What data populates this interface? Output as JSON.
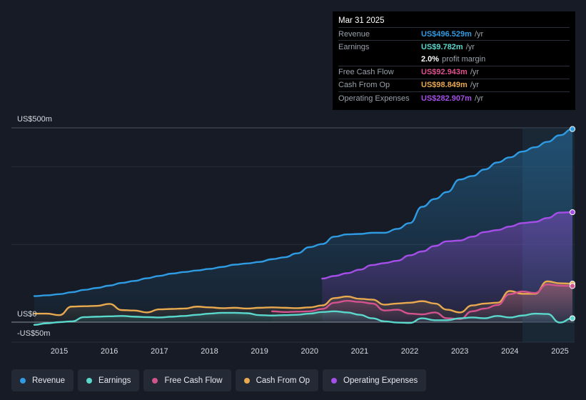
{
  "tooltip": {
    "date": "Mar 31 2025",
    "rows": [
      {
        "label": "Revenue",
        "value": "US$496.529m",
        "unit": "/yr",
        "color": "#2f9be3"
      },
      {
        "label": "Earnings",
        "value": "US$9.782m",
        "unit": "/yr",
        "color": "#5ad8cc"
      },
      {
        "label": "",
        "value": "2.0%",
        "unit": "profit margin",
        "color": "#ffffff"
      },
      {
        "label": "Free Cash Flow",
        "value": "US$92.943m",
        "unit": "/yr",
        "color": "#e0508f"
      },
      {
        "label": "Cash From Op",
        "value": "US$98.849m",
        "unit": "/yr",
        "color": "#e9a94f"
      },
      {
        "label": "Operating Expenses",
        "value": "US$282.907m",
        "unit": "/yr",
        "color": "#a54ee8"
      }
    ]
  },
  "legend": [
    {
      "label": "Revenue",
      "color": "#2f9be3"
    },
    {
      "label": "Earnings",
      "color": "#5ad8cc"
    },
    {
      "label": "Free Cash Flow",
      "color": "#d3538f"
    },
    {
      "label": "Cash From Op",
      "color": "#e9a94f"
    },
    {
      "label": "Operating Expenses",
      "color": "#a54ee8"
    }
  ],
  "chart_data": {
    "type": "area",
    "y_axis_labels": {
      "top": "US$500m",
      "zero": "US$0",
      "bottom": "-US$50m"
    },
    "ylim": [
      -50,
      500
    ],
    "xlim": [
      2014.5,
      2025.25
    ],
    "x_ticks": [
      "2015",
      "2016",
      "2017",
      "2018",
      "2019",
      "2020",
      "2021",
      "2022",
      "2023",
      "2024",
      "2025"
    ],
    "forecast_start": 2024.25,
    "series": [
      {
        "name": "Revenue",
        "color": "#2f9be3",
        "x": [
          2014.5,
          2014.75,
          2015,
          2015.25,
          2015.5,
          2015.75,
          2016,
          2016.25,
          2016.5,
          2016.75,
          2017,
          2017.25,
          2017.5,
          2017.75,
          2018,
          2018.25,
          2018.5,
          2018.75,
          2019,
          2019.25,
          2019.5,
          2019.75,
          2020,
          2020.25,
          2020.5,
          2020.75,
          2021,
          2021.25,
          2021.5,
          2021.75,
          2022,
          2022.25,
          2022.5,
          2022.75,
          2023,
          2023.25,
          2023.5,
          2023.75,
          2024,
          2024.25,
          2024.5,
          2024.75,
          2025,
          2025.25
        ],
        "values": [
          67,
          69,
          72,
          77,
          83,
          88,
          94,
          101,
          106,
          113,
          119,
          125,
          129,
          133,
          137,
          142,
          148,
          151,
          155,
          162,
          167,
          177,
          193,
          201,
          220,
          226,
          227,
          230,
          230,
          240,
          255,
          297,
          317,
          335,
          367,
          376,
          393,
          411,
          424,
          439,
          450,
          464,
          481,
          497
        ]
      },
      {
        "name": "Earnings",
        "color": "#5ad8cc",
        "x": [
          2014.5,
          2014.75,
          2015,
          2015.25,
          2015.5,
          2015.75,
          2016,
          2016.25,
          2016.5,
          2016.75,
          2017,
          2017.25,
          2017.5,
          2017.75,
          2018,
          2018.25,
          2018.5,
          2018.75,
          2019,
          2019.25,
          2019.5,
          2019.75,
          2020,
          2020.25,
          2020.5,
          2020.75,
          2021,
          2021.25,
          2021.5,
          2021.75,
          2022,
          2022.25,
          2022.5,
          2022.75,
          2023,
          2023.25,
          2023.5,
          2023.75,
          2024,
          2024.25,
          2024.5,
          2024.75,
          2025,
          2025.25
        ],
        "values": [
          -7,
          -3,
          0,
          2,
          13,
          14,
          15,
          16,
          14,
          13,
          12,
          14,
          16,
          19,
          22,
          24,
          24,
          23,
          18,
          17,
          18,
          19,
          22,
          26,
          28,
          25,
          19,
          10,
          2,
          -1,
          -2,
          10,
          5,
          5,
          10,
          12,
          10,
          16,
          12,
          17,
          22,
          21,
          -1,
          10
        ]
      },
      {
        "name": "Free Cash Flow",
        "color": "#d3538f",
        "x": [
          2019.25,
          2019.5,
          2019.75,
          2020,
          2020.25,
          2020.5,
          2020.75,
          2021,
          2021.25,
          2021.5,
          2021.75,
          2022,
          2022.25,
          2022.5,
          2022.75,
          2023,
          2023.25,
          2023.5,
          2023.75,
          2024,
          2024.25,
          2024.5,
          2024.75,
          2025,
          2025.25
        ],
        "values": [
          28,
          26,
          27,
          28,
          34,
          50,
          55,
          52,
          48,
          30,
          32,
          22,
          20,
          25,
          10,
          8,
          28,
          35,
          44,
          72,
          79,
          75,
          97,
          94,
          93
        ]
      },
      {
        "name": "Cash From Op",
        "color": "#e9a94f",
        "x": [
          2014.5,
          2014.75,
          2015,
          2015.25,
          2015.5,
          2015.75,
          2016,
          2016.25,
          2016.5,
          2016.75,
          2017,
          2017.25,
          2017.5,
          2017.75,
          2018,
          2018.25,
          2018.5,
          2018.75,
          2019,
          2019.25,
          2019.5,
          2019.75,
          2020,
          2020.25,
          2020.5,
          2020.75,
          2021,
          2021.25,
          2021.5,
          2021.75,
          2022,
          2022.25,
          2022.5,
          2022.75,
          2023,
          2023.25,
          2023.5,
          2023.75,
          2024,
          2024.25,
          2024.5,
          2024.75,
          2025,
          2025.25
        ],
        "values": [
          22,
          22,
          18,
          40,
          41,
          42,
          47,
          31,
          30,
          25,
          33,
          34,
          35,
          40,
          38,
          36,
          37,
          35,
          37,
          38,
          37,
          36,
          38,
          43,
          62,
          66,
          60,
          58,
          45,
          48,
          50,
          54,
          48,
          32,
          25,
          43,
          48,
          50,
          80,
          73,
          73,
          105,
          100,
          99
        ]
      },
      {
        "name": "Operating Expenses",
        "color": "#a54ee8",
        "x": [
          2020.25,
          2020.5,
          2020.75,
          2021,
          2021.25,
          2021.5,
          2021.75,
          2022,
          2022.25,
          2022.5,
          2022.75,
          2023,
          2023.25,
          2023.5,
          2023.75,
          2024,
          2024.25,
          2024.5,
          2024.75,
          2025,
          2025.25
        ],
        "values": [
          112,
          119,
          126,
          135,
          147,
          152,
          158,
          172,
          182,
          196,
          208,
          210,
          220,
          232,
          237,
          246,
          255,
          258,
          268,
          282,
          283
        ]
      }
    ]
  }
}
